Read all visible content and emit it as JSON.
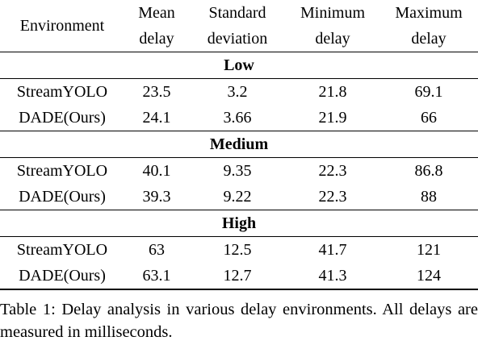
{
  "table": {
    "headers": {
      "environment": "Environment",
      "mean": [
        "Mean",
        "delay"
      ],
      "std": [
        "Standard",
        "deviation"
      ],
      "min": [
        "Minimum",
        "delay"
      ],
      "max": [
        "Maximum",
        "delay"
      ]
    },
    "groups": [
      {
        "name": "Low",
        "rows": [
          {
            "method": "StreamYOLO",
            "mean": "23.5",
            "std": "3.2",
            "min": "21.8",
            "max": "69.1"
          },
          {
            "method": "DADE(Ours)",
            "mean": "24.1",
            "std": "3.66",
            "min": "21.9",
            "max": "66"
          }
        ]
      },
      {
        "name": "Medium",
        "rows": [
          {
            "method": "StreamYOLO",
            "mean": "40.1",
            "std": "9.35",
            "min": "22.3",
            "max": "86.8"
          },
          {
            "method": "DADE(Ours)",
            "mean": "39.3",
            "std": "9.22",
            "min": "22.3",
            "max": "88"
          }
        ]
      },
      {
        "name": "High",
        "rows": [
          {
            "method": "StreamYOLO",
            "mean": "63",
            "std": "12.5",
            "min": "41.7",
            "max": "121"
          },
          {
            "method": "DADE(Ours)",
            "mean": "63.1",
            "std": "12.7",
            "min": "41.3",
            "max": "124"
          }
        ]
      }
    ]
  },
  "caption": "Table 1: Delay analysis in various delay environments. All delays are measured in milliseconds."
}
